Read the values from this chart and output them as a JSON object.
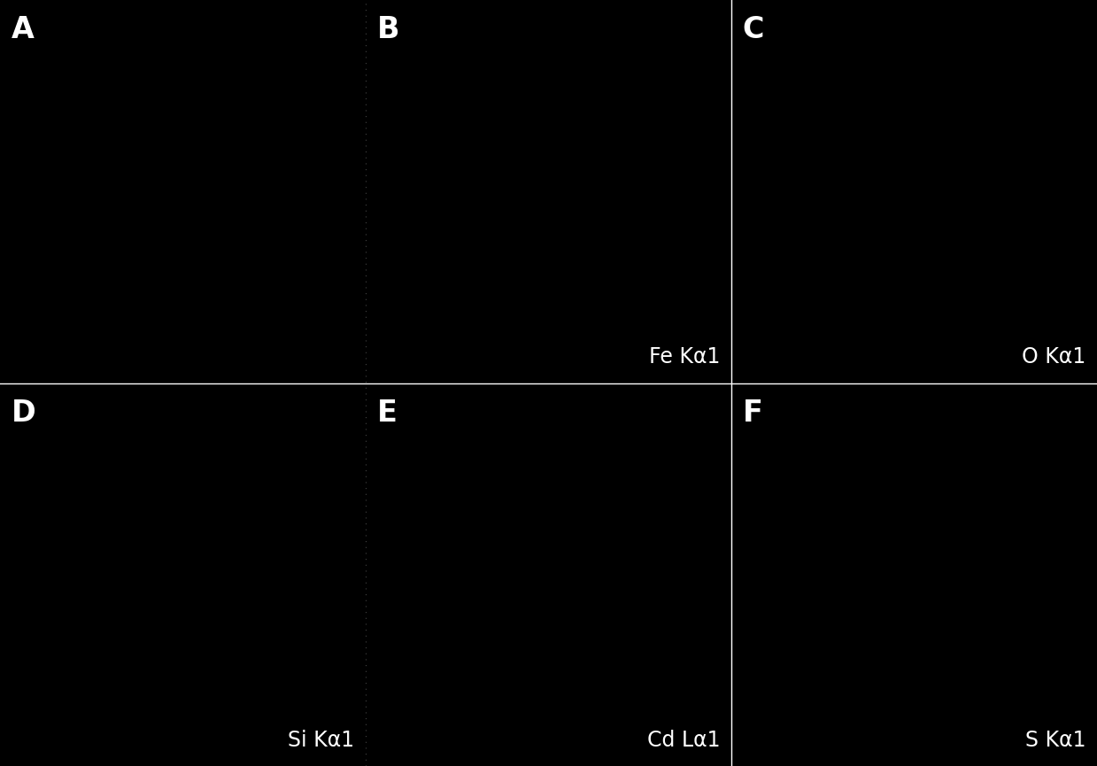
{
  "background_color": "#000000",
  "border_color": "#ffffff",
  "grid_rows": 2,
  "grid_cols": 3,
  "panel_labels": [
    "A",
    "B",
    "C",
    "D",
    "E",
    "F"
  ],
  "panel_sublabels": [
    "",
    "Fe Kα1",
    "O Kα1",
    "Si Kα1",
    "Cd Lα1",
    "S Kα1"
  ],
  "label_fontsize": 24,
  "sublabel_fontsize": 17,
  "label_color": "#ffffff",
  "divider_color": "#ffffff",
  "divider_linewidth": 1.0,
  "figsize": [
    12.39,
    8.65
  ],
  "dpi": 100,
  "col_split1": 0.3333,
  "col_split2": 0.6667,
  "row_split": 0.5
}
